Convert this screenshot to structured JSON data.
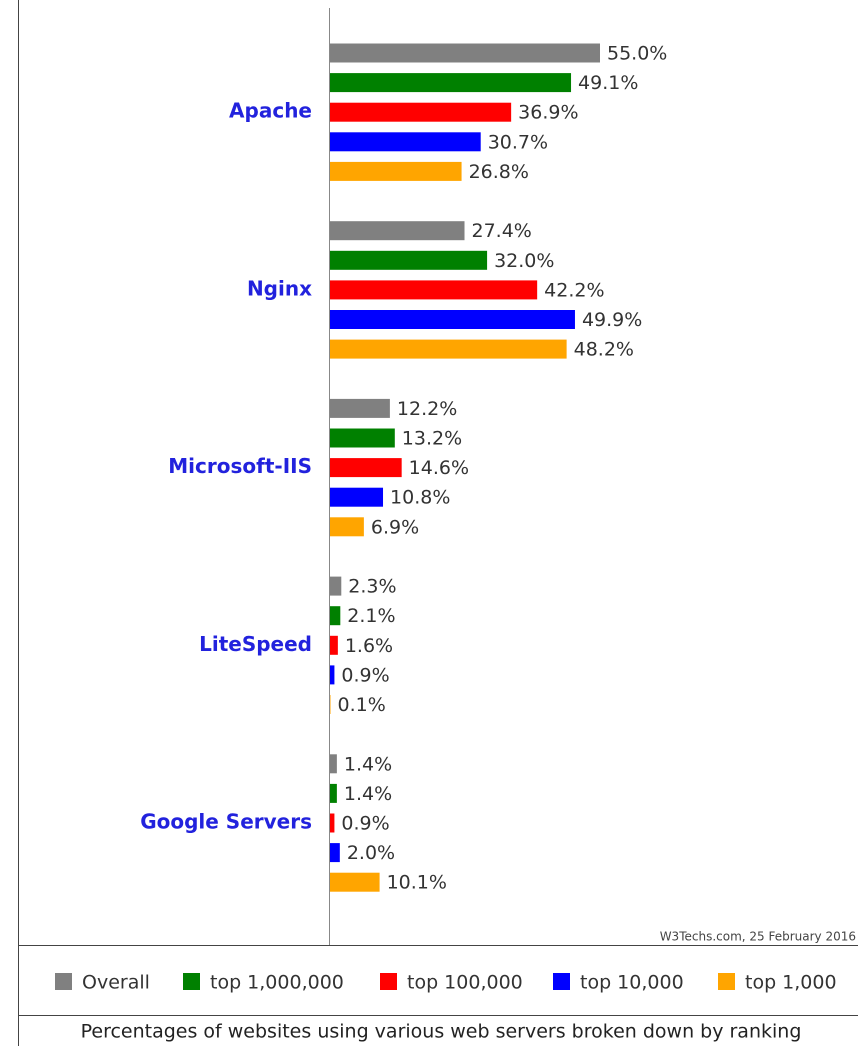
{
  "chart_data": {
    "type": "bar",
    "orientation": "horizontal",
    "categories": [
      "Apache",
      "Nginx",
      "Microsoft-IIS",
      "LiteSpeed",
      "Google Servers"
    ],
    "series": [
      {
        "name": "Overall",
        "color": "#808080",
        "values": [
          55,
          27.4,
          12.2,
          2.3,
          1.4
        ],
        "value_labels": [
          "55.0%",
          "27.4%",
          "12.2%",
          "2.3%",
          "1.4%"
        ]
      },
      {
        "name": "top 1,000,000",
        "color": "#008000",
        "values": [
          49.1,
          32,
          13.2,
          2.1,
          1.4
        ],
        "value_labels": [
          "49.1%",
          "32.0%",
          "13.2%",
          "2.1%",
          "1.4%"
        ]
      },
      {
        "name": "top 100,000",
        "color": "#ff0000",
        "values": [
          36.9,
          42.2,
          14.6,
          1.6,
          0.9
        ],
        "value_labels": [
          "36.9%",
          "42.2%",
          "14.6%",
          "1.6%",
          "0.9%"
        ]
      },
      {
        "name": "top 10,000",
        "color": "#0000ff",
        "values": [
          30.7,
          49.9,
          10.8,
          0.9,
          2
        ],
        "value_labels": [
          "30.7%",
          "49.9%",
          "10.8%",
          "0.9%",
          "2.0%"
        ]
      },
      {
        "name": "top 1,000",
        "color": "#ffa500",
        "values": [
          26.8,
          48.2,
          6.9,
          0.1,
          10.1
        ],
        "value_labels": [
          "26.8%",
          "48.2%",
          "6.9%",
          "0.1%",
          "10.1%"
        ]
      }
    ],
    "annotation": "W3Techs.com, 25 February 2016",
    "caption": "Percentages of websites using various web servers broken down by ranking"
  }
}
